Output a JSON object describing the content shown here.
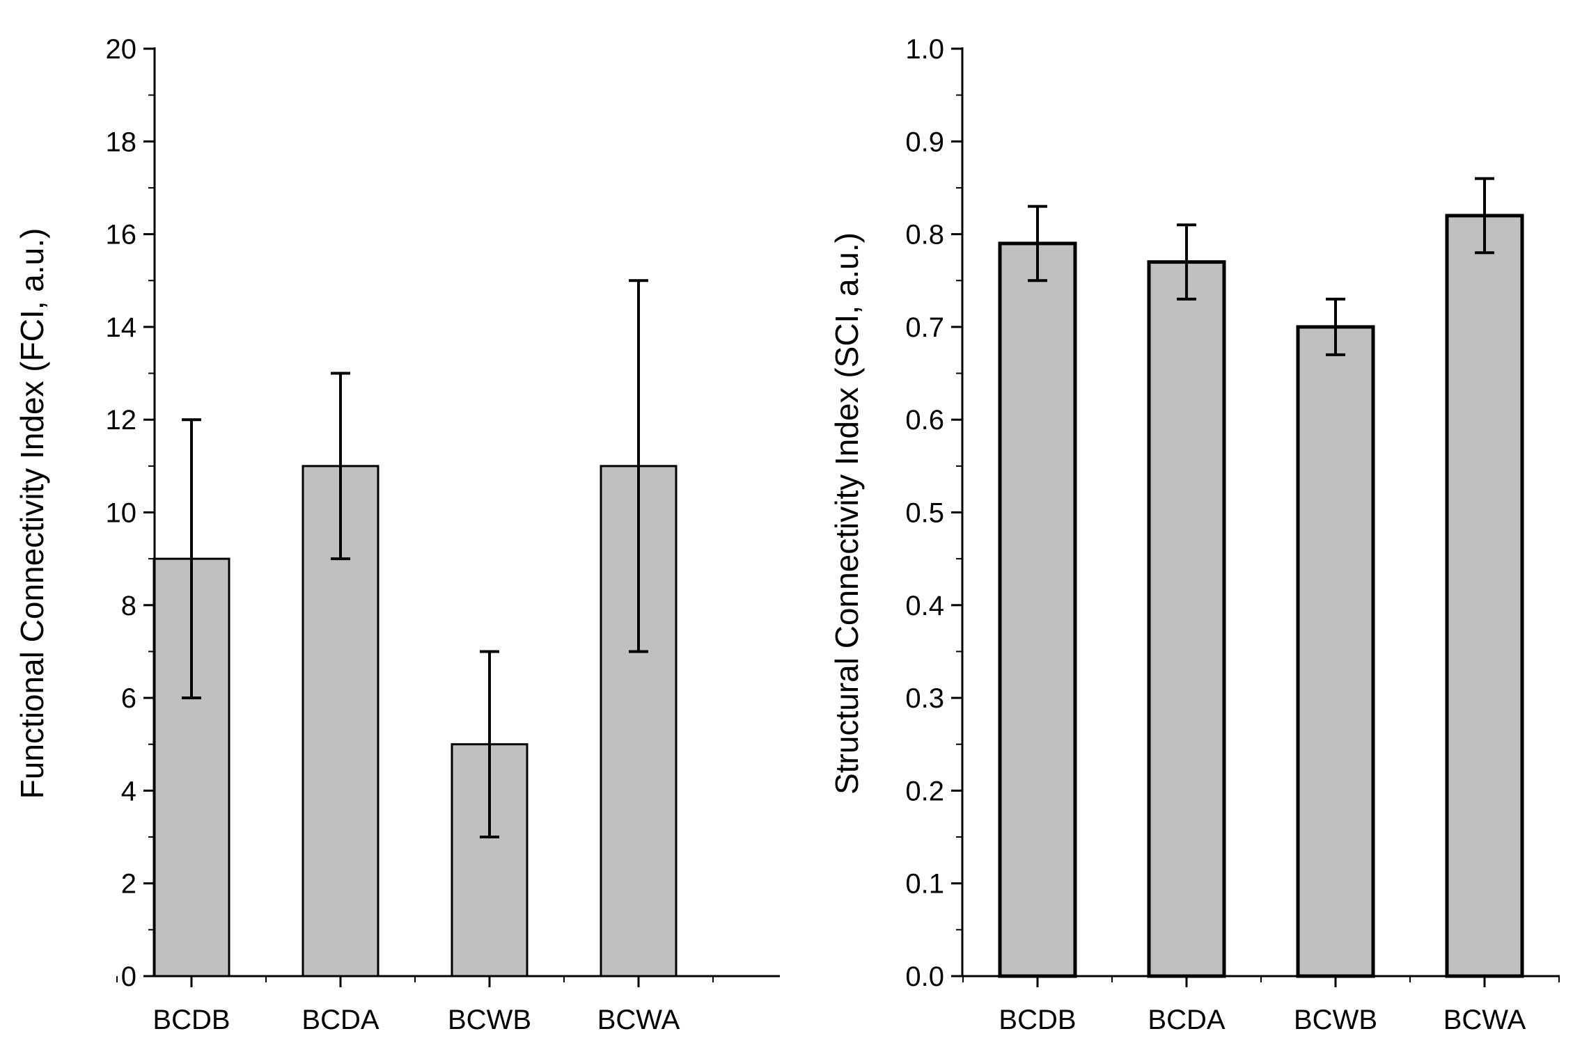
{
  "chart_data": [
    {
      "id": "fci",
      "type": "bar",
      "title": "",
      "xlabel": "",
      "ylabel": "Functional Connectivity Index (FCI, a.u.)",
      "categories": [
        "BCDB",
        "BCDA",
        "BCWB",
        "BCWA"
      ],
      "values": [
        9,
        11,
        5,
        11
      ],
      "error_low": [
        6,
        9,
        3,
        7
      ],
      "error_high": [
        12,
        13,
        7,
        15
      ],
      "ylim": [
        0,
        20
      ],
      "yticks": [
        0,
        2,
        4,
        6,
        8,
        10,
        12,
        14,
        16,
        18,
        20
      ],
      "ytick_labels": [
        "0",
        "2",
        "4",
        "6",
        "8",
        "10",
        "12",
        "14",
        "16",
        "18",
        "20"
      ],
      "bar_color": "#c0c0c0",
      "grid": false
    },
    {
      "id": "sci",
      "type": "bar",
      "title": "",
      "xlabel": "",
      "ylabel": "Structural Connectivity Index (SCI, a.u.)",
      "categories": [
        "BCDB",
        "BCDA",
        "BCWB",
        "BCWA"
      ],
      "values": [
        0.79,
        0.77,
        0.7,
        0.82
      ],
      "error_low": [
        0.75,
        0.73,
        0.67,
        0.78
      ],
      "error_high": [
        0.83,
        0.81,
        0.73,
        0.86
      ],
      "ylim": [
        0,
        1.0
      ],
      "yticks": [
        0,
        0.1,
        0.2,
        0.3,
        0.4,
        0.5,
        0.6,
        0.7,
        0.8,
        0.9,
        1.0
      ],
      "ytick_labels": [
        "0.0",
        "0.1",
        "0.2",
        "0.3",
        "0.4",
        "0.5",
        "0.6",
        "0.7",
        "0.8",
        "0.9",
        "1.0"
      ],
      "bar_color": "#c0c0c0",
      "grid": false
    }
  ]
}
